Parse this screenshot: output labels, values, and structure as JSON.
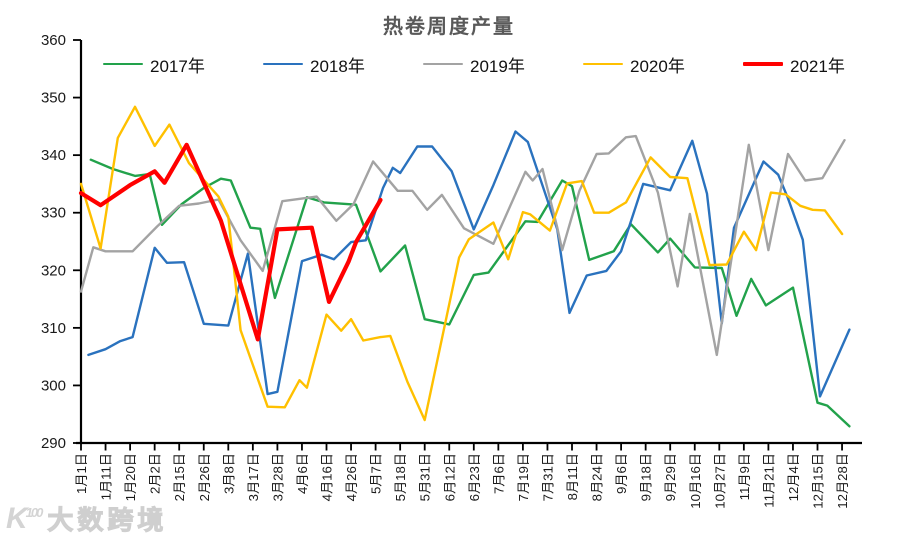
{
  "chart": {
    "title": "热卷周度产量"
  },
  "watermark": {
    "logo": "K",
    "logo_sup": "100",
    "text": "大数跨境"
  },
  "chart_data": {
    "type": "line",
    "title": "热卷周度产量",
    "xlabel": "",
    "ylabel": "",
    "ylim": [
      290,
      360
    ],
    "y_ticks": [
      290,
      300,
      310,
      320,
      330,
      340,
      350,
      360
    ],
    "grid": false,
    "legend_position": "top",
    "axis_color": "#000000",
    "x_labels": [
      "1月1日",
      "1月11日",
      "1月20日",
      "2月2日",
      "2月15日",
      "2月26日",
      "3月8日",
      "3月17日",
      "3月28日",
      "4月6日",
      "4月16日",
      "4月26日",
      "5月7日",
      "5月18日",
      "5月31日",
      "6月12日",
      "6月23日",
      "7月6日",
      "7月19日",
      "7月31日",
      "8月11日",
      "8月24日",
      "9月6日",
      "9月18日",
      "9月29日",
      "10月16日",
      "10月27日",
      "11月9日",
      "11月21日",
      "12月4日",
      "12月15日",
      "12月28日"
    ],
    "series": [
      {
        "name": "2017年",
        "color": "#22A24B",
        "width": 2.4,
        "points": [
          [
            0.4,
            339.2
          ],
          [
            1.3,
            337.6
          ],
          [
            2.2,
            336.4
          ],
          [
            2.8,
            336.7
          ],
          [
            3.3,
            327.9
          ],
          [
            4.1,
            331.5
          ],
          [
            5,
            334.3
          ],
          [
            5.7,
            335.9
          ],
          [
            6.1,
            335.6
          ],
          [
            6.9,
            327.4
          ],
          [
            7.3,
            327.2
          ],
          [
            7.9,
            315.2
          ],
          [
            9.2,
            332.7
          ],
          [
            9.9,
            331.8
          ],
          [
            11.2,
            331.4
          ],
          [
            12.2,
            319.8
          ],
          [
            13.2,
            324.3
          ],
          [
            14,
            311.5
          ],
          [
            15,
            310.6
          ],
          [
            16,
            319.2
          ],
          [
            16.6,
            319.6
          ],
          [
            18.1,
            328.5
          ],
          [
            18.6,
            328.4
          ],
          [
            19.6,
            335.6
          ],
          [
            20,
            334.6
          ],
          [
            20.7,
            321.8
          ],
          [
            21.7,
            323.3
          ],
          [
            22.4,
            328.0
          ],
          [
            23.5,
            323.1
          ],
          [
            24,
            325.5
          ],
          [
            25,
            320.5
          ],
          [
            26.1,
            320.4
          ],
          [
            26.7,
            312.1
          ],
          [
            27.3,
            318.5
          ],
          [
            27.9,
            313.9
          ],
          [
            29,
            317.0
          ],
          [
            30,
            297.0
          ],
          [
            30.4,
            296.5
          ],
          [
            31.3,
            292.9
          ]
        ]
      },
      {
        "name": "2018年",
        "color": "#2A72BE",
        "width": 2.4,
        "points": [
          [
            0.3,
            305.3
          ],
          [
            1,
            306.3
          ],
          [
            1.6,
            307.7
          ],
          [
            2.1,
            308.4
          ],
          [
            3,
            323.9
          ],
          [
            3.5,
            321.3
          ],
          [
            4.2,
            321.4
          ],
          [
            5,
            310.7
          ],
          [
            6,
            310.4
          ],
          [
            6.8,
            322.9
          ],
          [
            7.6,
            298.5
          ],
          [
            8,
            298.9
          ],
          [
            9,
            321.6
          ],
          [
            9.8,
            322.7
          ],
          [
            10.3,
            321.9
          ],
          [
            11,
            324.9
          ],
          [
            11.6,
            325.2
          ],
          [
            12.3,
            334.3
          ],
          [
            12.7,
            337.8
          ],
          [
            13,
            336.9
          ],
          [
            13.7,
            341.5
          ],
          [
            14.3,
            341.5
          ],
          [
            15.1,
            337.2
          ],
          [
            16,
            327.1
          ],
          [
            16.8,
            334.8
          ],
          [
            17.7,
            344.1
          ],
          [
            18.2,
            342.3
          ],
          [
            19.4,
            327.1
          ],
          [
            19.9,
            312.6
          ],
          [
            20.6,
            319.1
          ],
          [
            21.4,
            319.9
          ],
          [
            22,
            323.3
          ],
          [
            22.9,
            335.0
          ],
          [
            24,
            333.9
          ],
          [
            24.9,
            342.5
          ],
          [
            25.5,
            333.3
          ],
          [
            26.1,
            310.8
          ],
          [
            26.6,
            327.4
          ],
          [
            27.8,
            338.9
          ],
          [
            28.4,
            336.6
          ],
          [
            28.8,
            332.5
          ],
          [
            29.4,
            325.3
          ],
          [
            30.1,
            298.1
          ],
          [
            31.3,
            309.7
          ]
        ]
      },
      {
        "name": "2019年",
        "color": "#A3A3A3",
        "width": 2.4,
        "points": [
          [
            0,
            316.3
          ],
          [
            0.5,
            324.0
          ],
          [
            1,
            323.3
          ],
          [
            2.1,
            323.3
          ],
          [
            3.1,
            327.6
          ],
          [
            4,
            331.2
          ],
          [
            4.8,
            331.6
          ],
          [
            5.6,
            332.3
          ],
          [
            6.5,
            325.2
          ],
          [
            7.4,
            319.9
          ],
          [
            8.2,
            332.0
          ],
          [
            9.6,
            332.8
          ],
          [
            10.4,
            328.6
          ],
          [
            11.1,
            331.5
          ],
          [
            11.9,
            338.9
          ],
          [
            12.9,
            333.8
          ],
          [
            13.5,
            333.8
          ],
          [
            14.1,
            330.5
          ],
          [
            14.7,
            333.1
          ],
          [
            15.6,
            327.3
          ],
          [
            16.8,
            324.6
          ],
          [
            18.1,
            337.1
          ],
          [
            18.4,
            335.6
          ],
          [
            18.8,
            337.6
          ],
          [
            19.4,
            327.4
          ],
          [
            19.6,
            323.5
          ],
          [
            20.3,
            333.8
          ],
          [
            21,
            340.2
          ],
          [
            21.5,
            340.3
          ],
          [
            22.2,
            343.1
          ],
          [
            22.6,
            343.3
          ],
          [
            23.5,
            333.5
          ],
          [
            24.3,
            317.2
          ],
          [
            24.8,
            329.8
          ],
          [
            25.9,
            305.3
          ],
          [
            27.2,
            341.8
          ],
          [
            28,
            323.5
          ],
          [
            28.8,
            340.2
          ],
          [
            29.5,
            335.6
          ],
          [
            30.2,
            336.0
          ],
          [
            31.1,
            342.6
          ]
        ]
      },
      {
        "name": "2020年",
        "color": "#FFC000",
        "width": 2.4,
        "points": [
          [
            0,
            335.0
          ],
          [
            0.8,
            323.8
          ],
          [
            1.5,
            343.0
          ],
          [
            2.2,
            348.4
          ],
          [
            3,
            341.6
          ],
          [
            3.6,
            345.3
          ],
          [
            4.4,
            338.6
          ],
          [
            5.6,
            332.8
          ],
          [
            6,
            329.3
          ],
          [
            6.5,
            309.6
          ],
          [
            7.6,
            296.3
          ],
          [
            8.3,
            296.2
          ],
          [
            8.9,
            300.9
          ],
          [
            9.2,
            299.6
          ],
          [
            10,
            312.3
          ],
          [
            10.6,
            309.5
          ],
          [
            11,
            311.5
          ],
          [
            11.5,
            307.8
          ],
          [
            12.2,
            308.4
          ],
          [
            12.6,
            308.6
          ],
          [
            13.3,
            300.6
          ],
          [
            14,
            294.0
          ],
          [
            15.4,
            322.2
          ],
          [
            15.8,
            325.4
          ],
          [
            16.8,
            328.3
          ],
          [
            17.4,
            321.9
          ],
          [
            18,
            330.1
          ],
          [
            18.3,
            329.7
          ],
          [
            19.1,
            326.9
          ],
          [
            19.8,
            335.1
          ],
          [
            20.4,
            335.5
          ],
          [
            20.9,
            330.0
          ],
          [
            21.5,
            330.0
          ],
          [
            22.2,
            331.8
          ],
          [
            23.2,
            339.6
          ],
          [
            24,
            336.2
          ],
          [
            24.7,
            336.0
          ],
          [
            25.6,
            320.9
          ],
          [
            26.3,
            321.0
          ],
          [
            27,
            326.7
          ],
          [
            27.5,
            323.5
          ],
          [
            28.1,
            333.5
          ],
          [
            28.7,
            333.2
          ],
          [
            29.3,
            331.2
          ],
          [
            29.8,
            330.5
          ],
          [
            30.3,
            330.4
          ],
          [
            31,
            326.3
          ]
        ]
      },
      {
        "name": "2021年",
        "color": "#FF0000",
        "width": 4.2,
        "points": [
          [
            0,
            333.4
          ],
          [
            0.8,
            331.3
          ],
          [
            2,
            334.8
          ],
          [
            3,
            337.2
          ],
          [
            3.4,
            335.2
          ],
          [
            4.3,
            341.8
          ],
          [
            5.7,
            328.6
          ],
          [
            7.2,
            308.0
          ],
          [
            8,
            327.1
          ],
          [
            9.4,
            327.4
          ],
          [
            10.1,
            314.5
          ],
          [
            10.9,
            321.5
          ],
          [
            11.2,
            324.9
          ],
          [
            12.2,
            332.2
          ]
        ]
      }
    ]
  }
}
